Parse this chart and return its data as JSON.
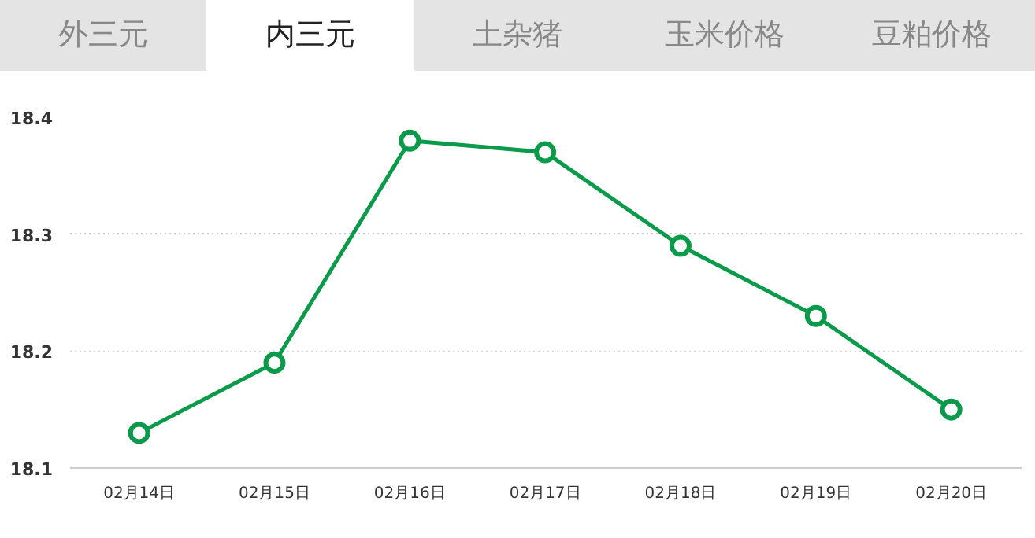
{
  "chart_data": {
    "type": "line",
    "title": "内三元",
    "annotations": [
      "外三元",
      "土杂猪",
      "玉米价格",
      "豆粕价格"
    ],
    "categories": [
      "02月14日",
      "02月15日",
      "02月16日",
      "02月17日",
      "02月18日",
      "02月19日",
      "02月20日"
    ],
    "series": [
      {
        "color": "#0a9a4a",
        "values": [
          18.13,
          18.19,
          18.38,
          18.37,
          18.29,
          18.23,
          18.15
        ]
      }
    ],
    "ylim": [
      18.1,
      18.4
    ],
    "yticks": [
      18.1,
      18.2,
      18.3,
      18.4
    ],
    "grid": "y",
    "marker": "circle",
    "line_style": "solid"
  }
}
